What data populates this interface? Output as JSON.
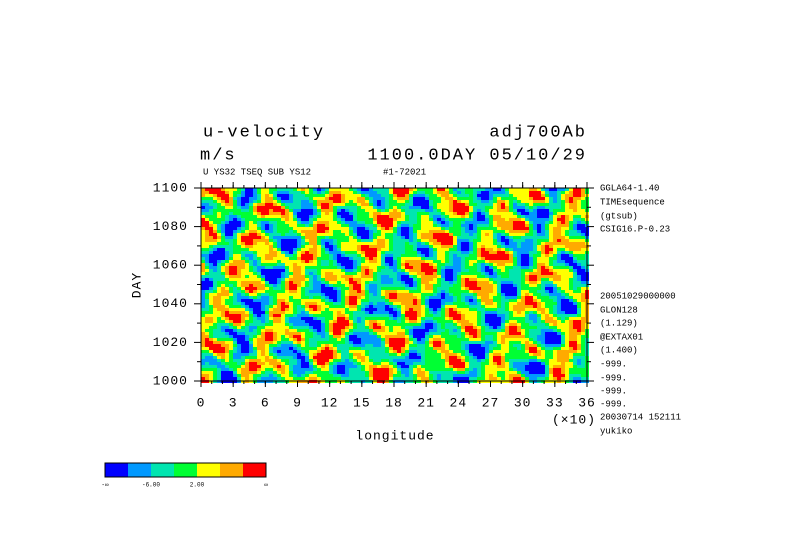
{
  "chart_data": {
    "type": "hovmoller",
    "title_left": "u-velocity",
    "title_right": "adj700Ab",
    "units": "m/s",
    "title_time": "1100.0DAY 05/10/29",
    "subtitle_left": "U YS32 TSEQ SUB YS12",
    "subtitle_right": "#1-72021",
    "xlabel": "longitude",
    "ylabel": "DAY",
    "x_scale_note": "(×10)",
    "xlim": [
      0,
      36
    ],
    "xticks": [
      0,
      3,
      6,
      9,
      12,
      15,
      18,
      21,
      24,
      27,
      30,
      33,
      36
    ],
    "ylim": [
      1000,
      1100
    ],
    "yticks": [
      1000,
      1020,
      1040,
      1060,
      1080,
      1100
    ],
    "side_notes": [
      "GGLA64-1.40",
      "TIMEsequence",
      "(gtsub)",
      "CSIG16.P-0.23",
      "20051029000000",
      "GLON128",
      "(1.129)",
      "@EXTAX01",
      "(1.400)",
      "-999.",
      "-999.",
      "-999.",
      "-999.",
      "20030714 152111",
      "yukiko"
    ],
    "colorbar": {
      "colors": [
        "#0000ff",
        "#0099ff",
        "#00e5b0",
        "#00ff33",
        "#ffff00",
        "#ffaa00",
        "#ff0000"
      ],
      "edge_labels": [
        "-∞",
        null,
        "-6.00",
        null,
        "2.00",
        null,
        null,
        "∞"
      ]
    }
  }
}
